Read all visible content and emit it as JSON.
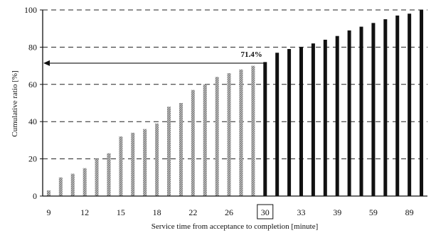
{
  "chart_data": {
    "type": "bar",
    "xlabel": "Service time from acceptance to completion [minute]",
    "ylabel": "Cumulative ratio [%]",
    "ylim": [
      0,
      100
    ],
    "yticks": [
      0,
      20,
      40,
      60,
      80,
      100
    ],
    "grid": true,
    "x_tick_labels": [
      "9",
      "12",
      "15",
      "18",
      "22",
      "26",
      "30",
      "33",
      "39",
      "59",
      "89"
    ],
    "highlight_tick": "30",
    "annotation": {
      "text": "71.4%",
      "value": 71.4
    },
    "series": [
      {
        "values": [
          3,
          10,
          12,
          15,
          20,
          23,
          32,
          34,
          36,
          39,
          48,
          50,
          57,
          60,
          64,
          66,
          68,
          70
        ]
      },
      {
        "values": [
          72,
          77,
          79,
          80,
          82,
          84,
          86,
          89,
          91,
          93,
          95,
          97,
          98,
          100
        ]
      }
    ],
    "colors": {
      "series1": "#a8a8a8",
      "series2": "#111111",
      "axis": "#111111",
      "grid": "#222222"
    }
  }
}
